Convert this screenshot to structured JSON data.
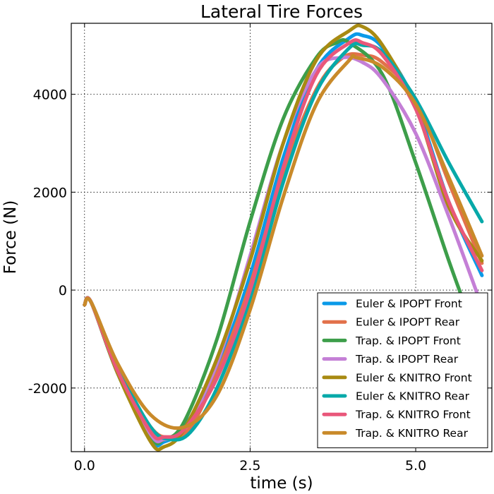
{
  "chart_data": {
    "type": "line",
    "title": "Lateral Tire Forces",
    "xlabel": "time (s)",
    "ylabel": "Force (N)",
    "xlim": [
      -0.2,
      6.15
    ],
    "ylim": [
      -3300,
      5450
    ],
    "xticks": [
      0,
      2.5,
      5
    ],
    "xtick_labels": [
      "0.0",
      "2.5",
      "5.0"
    ],
    "yticks": [
      -2000,
      0,
      2000,
      4000
    ],
    "ytick_labels": [
      "-2000",
      "0",
      "2000",
      "4000"
    ],
    "grid": true,
    "legend_position": "lower-right",
    "series": [
      {
        "name": "Euler & IPOPT Front",
        "color": "#0a9ae8",
        "x": [
          0,
          0.1,
          0.5,
          1,
          1.2,
          1.5,
          2,
          2.5,
          3,
          3.5,
          4,
          4.2,
          4.5,
          5,
          5.5,
          6
        ],
        "y": [
          -300,
          -250,
          -1700,
          -3050,
          -3100,
          -2800,
          -1600,
          300,
          2700,
          4500,
          5150,
          5200,
          4950,
          3800,
          1800,
          300
        ]
      },
      {
        "name": "Euler & IPOPT Rear",
        "color": "#e2714a",
        "x": [
          0,
          0.1,
          0.5,
          1,
          1.3,
          1.6,
          2,
          2.5,
          3,
          3.5,
          3.9,
          4.2,
          4.5,
          5,
          5.5,
          6
        ],
        "y": [
          -300,
          -250,
          -1600,
          -2800,
          -3000,
          -2800,
          -1700,
          100,
          2400,
          4100,
          4750,
          4800,
          4650,
          3900,
          2200,
          550
        ]
      },
      {
        "name": "Trap. & IPOPT Front",
        "color": "#3d9e4a",
        "x": [
          0,
          0.1,
          0.5,
          1,
          1.2,
          1.5,
          2,
          2.5,
          3,
          3.5,
          3.8,
          4.0,
          4.5,
          5,
          5.5,
          5.85
        ],
        "y": [
          -300,
          -250,
          -1600,
          -3000,
          -3050,
          -2700,
          -1000,
          1400,
          3500,
          4750,
          5050,
          5050,
          4400,
          2600,
          600,
          -700
        ]
      },
      {
        "name": "Trap. & IPOPT Rear",
        "color": "#c47fd6",
        "x": [
          0,
          0.1,
          0.5,
          1,
          1.2,
          1.5,
          2,
          2.5,
          3,
          3.5,
          3.9,
          4.2,
          4.5,
          5,
          5.5,
          5.95
        ],
        "y": [
          -300,
          -250,
          -1650,
          -2950,
          -3050,
          -2850,
          -1500,
          700,
          3000,
          4500,
          4750,
          4650,
          4300,
          3200,
          1500,
          -150
        ]
      },
      {
        "name": "Euler & KNITRO Front",
        "color": "#a88a12",
        "x": [
          0,
          0.1,
          0.5,
          1,
          1.2,
          1.5,
          2,
          2.5,
          3,
          3.5,
          4,
          4.2,
          4.5,
          5,
          5.5,
          6
        ],
        "y": [
          -300,
          -250,
          -1700,
          -3100,
          -3200,
          -2850,
          -1400,
          600,
          3000,
          4700,
          5300,
          5380,
          5000,
          3750,
          1700,
          600
        ]
      },
      {
        "name": "Euler & KNITRO Rear",
        "color": "#07a9a9",
        "x": [
          0,
          0.1,
          0.5,
          1,
          1.3,
          1.6,
          2,
          2.5,
          3,
          3.5,
          4,
          4.2,
          4.5,
          5,
          5.5,
          6
        ],
        "y": [
          -300,
          -250,
          -1550,
          -2800,
          -3050,
          -2900,
          -2000,
          -200,
          2200,
          4050,
          4950,
          5000,
          4850,
          3900,
          2600,
          1400
        ]
      },
      {
        "name": "Trap. & KNITRO Front",
        "color": "#e9577a",
        "x": [
          0,
          0.1,
          0.5,
          1,
          1.2,
          1.5,
          2,
          2.5,
          3,
          3.5,
          4,
          4.2,
          4.5,
          5,
          5.5,
          6
        ],
        "y": [
          -300,
          -250,
          -1650,
          -2900,
          -3000,
          -2850,
          -1800,
          0,
          2500,
          4400,
          5050,
          5050,
          4800,
          3700,
          1800,
          400
        ]
      },
      {
        "name": "Trap. & KNITRO Rear",
        "color": "#c98a2a",
        "x": [
          0,
          0.1,
          0.5,
          1,
          1.5,
          2,
          2.5,
          3,
          3.5,
          4,
          4.1,
          4.5,
          5,
          5.5,
          6
        ],
        "y": [
          -300,
          -250,
          -1500,
          -2550,
          -2800,
          -2150,
          -400,
          1900,
          3800,
          4700,
          4750,
          4550,
          3800,
          2300,
          700
        ]
      }
    ]
  }
}
